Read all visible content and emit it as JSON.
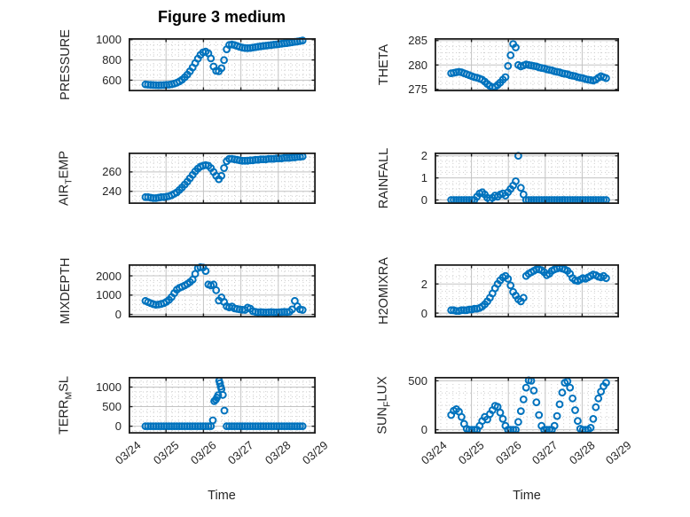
{
  "figure_title": "Figure 3 medium",
  "xlabel": "Time",
  "x_axis": {
    "tick_labels": [
      "03/24",
      "03/25",
      "03/26",
      "03/27",
      "03/28",
      "03/29"
    ],
    "range_days": [
      0,
      5
    ]
  },
  "style": {
    "marker_color": "#0072BD",
    "axis_color": "#1f1f1f",
    "text_color": "#262626",
    "major_grid_color": "#c3c3c3",
    "minor_grid_color": "#cdcdcd",
    "background": "#ffffff"
  },
  "x_days": [
    0.45,
    0.52,
    0.59,
    0.66,
    0.73,
    0.8,
    0.87,
    0.94,
    1.01,
    1.08,
    1.15,
    1.22,
    1.29,
    1.36,
    1.43,
    1.5,
    1.57,
    1.64,
    1.71,
    1.78,
    1.85,
    1.92,
    1.99,
    2.06,
    2.13,
    2.2,
    2.27,
    2.34,
    2.41,
    2.48,
    2.55,
    2.62,
    2.69,
    2.76,
    2.83,
    2.9,
    2.97,
    3.04,
    3.11,
    3.18,
    3.25,
    3.32,
    3.39,
    3.46,
    3.53,
    3.6,
    3.67,
    3.74,
    3.81,
    3.88,
    3.95,
    4.02,
    4.09,
    4.16,
    4.23,
    4.3,
    4.37,
    4.44,
    4.51,
    4.58,
    4.65
  ],
  "chart_data": [
    {
      "type": "scatter",
      "name": "PRESSURE",
      "ylabel_parts": [
        {
          "text": "PRESSURE"
        }
      ],
      "ylim": [
        490,
        1015
      ],
      "yticks": [
        600,
        800,
        1000
      ],
      "minor_y_step": 50,
      "y": [
        558,
        556,
        554,
        552,
        551,
        550,
        551,
        552,
        554,
        556,
        560,
        566,
        575,
        588,
        605,
        628,
        655,
        688,
        725,
        768,
        812,
        850,
        875,
        882,
        865,
        815,
        735,
        692,
        688,
        718,
        798,
        905,
        948,
        952,
        947,
        938,
        928,
        921,
        917,
        916,
        918,
        922,
        926,
        930,
        934,
        938,
        941,
        944,
        947,
        950,
        953,
        956,
        960,
        963,
        966,
        970,
        974,
        978,
        982,
        986,
        991
      ]
    },
    {
      "type": "scatter",
      "name": "THETA",
      "ylabel_parts": [
        {
          "text": "THETA"
        }
      ],
      "ylim": [
        274.6,
        285.5
      ],
      "yticks": [
        275,
        280,
        285
      ],
      "minor_y_step": 1.25,
      "y": [
        278.3,
        278.4,
        278.5,
        278.6,
        278.5,
        278.3,
        278.1,
        277.9,
        277.7,
        277.5,
        277.4,
        277.2,
        277.0,
        276.6,
        276.1,
        275.7,
        275.4,
        275.5,
        275.9,
        276.4,
        277.0,
        277.5,
        279.8,
        282.0,
        284.3,
        283.6,
        280.0,
        279.7,
        279.9,
        280.1,
        280.0,
        279.9,
        279.8,
        279.7,
        279.5,
        279.4,
        279.3,
        279.1,
        279.0,
        278.9,
        278.7,
        278.6,
        278.5,
        278.3,
        278.2,
        278.1,
        277.9,
        277.8,
        277.7,
        277.5,
        277.4,
        277.3,
        277.1,
        277.0,
        276.9,
        276.8,
        277.0,
        277.4,
        277.7,
        277.5,
        277.3
      ]
    },
    {
      "type": "scatter",
      "name": "AIR_TEMP",
      "ylabel_parts": [
        {
          "text": "AIR"
        },
        {
          "sub": "T"
        },
        {
          "text": "EMP"
        }
      ],
      "ylim": [
        227,
        280
      ],
      "yticks": [
        240,
        260
      ],
      "minor_y_step": 5,
      "y": [
        234,
        234,
        233.5,
        233,
        233,
        233.5,
        234,
        234,
        234.5,
        235,
        236,
        237.5,
        239,
        241.5,
        244,
        247,
        250,
        253.5,
        257,
        260.5,
        263.5,
        265.5,
        266.5,
        267,
        266.5,
        264,
        260,
        256,
        252.5,
        256,
        264,
        271,
        273.5,
        273.5,
        273,
        272.5,
        272,
        271.5,
        271.5,
        271.5,
        272,
        272,
        272.5,
        272.5,
        273,
        273,
        273,
        273.5,
        273.5,
        273.5,
        274,
        274,
        274,
        274.5,
        274.5,
        274.5,
        275,
        275,
        275.5,
        275.5,
        276
      ]
    },
    {
      "type": "scatter",
      "name": "RAINFALL",
      "ylabel_parts": [
        {
          "text": "RAINFALL"
        }
      ],
      "ylim": [
        -0.18,
        2.15
      ],
      "yticks": [
        0,
        1,
        2
      ],
      "minor_y_step": 0.25,
      "y": [
        0,
        0,
        0,
        0,
        0,
        0,
        0,
        0,
        0,
        0,
        0.15,
        0.3,
        0.35,
        0.25,
        0.1,
        0,
        0.1,
        0.2,
        0.15,
        0.25,
        0.3,
        0.2,
        0.35,
        0.5,
        0.65,
        0.85,
        2,
        0.55,
        0.25,
        0,
        0,
        0,
        0,
        0,
        0,
        0,
        0,
        0,
        0,
        0,
        0,
        0,
        0,
        0,
        0,
        0,
        0,
        0,
        0,
        0,
        0,
        0,
        0,
        0,
        0,
        0,
        0,
        0,
        0,
        0,
        0
      ]
    },
    {
      "type": "scatter",
      "name": "MIXDEPTH",
      "ylabel_parts": [
        {
          "text": "MIXDEPTH"
        }
      ],
      "ylim": [
        -160,
        2600
      ],
      "yticks": [
        0,
        1000,
        2000
      ],
      "minor_y_step": 250,
      "y": [
        700,
        640,
        580,
        530,
        500,
        510,
        540,
        580,
        650,
        750,
        900,
        1100,
        1280,
        1380,
        1430,
        1500,
        1580,
        1680,
        1800,
        2100,
        2400,
        2450,
        2430,
        2250,
        1550,
        1500,
        1550,
        1250,
        720,
        880,
        650,
        420,
        360,
        410,
        310,
        280,
        260,
        240,
        230,
        350,
        300,
        160,
        130,
        110,
        120,
        110,
        100,
        110,
        120,
        110,
        100,
        110,
        120,
        130,
        120,
        140,
        260,
        700,
        420,
        260,
        230
      ]
    },
    {
      "type": "scatter",
      "name": "H2OMIXRA",
      "ylabel_parts": [
        {
          "text": "H2OMIXRA"
        }
      ],
      "ylim": [
        -0.3,
        3.35
      ],
      "yticks": [
        0,
        2
      ],
      "minor_y_step": 0.5,
      "y": [
        0.2,
        0.2,
        0.15,
        0.15,
        0.2,
        0.2,
        0.2,
        0.25,
        0.25,
        0.3,
        0.3,
        0.35,
        0.45,
        0.6,
        0.8,
        1.05,
        1.35,
        1.7,
        2.0,
        2.25,
        2.45,
        2.55,
        2.35,
        1.9,
        1.45,
        1.2,
        0.95,
        0.8,
        1.05,
        2.55,
        2.7,
        2.8,
        2.9,
        3.0,
        3.0,
        2.95,
        2.8,
        2.6,
        2.7,
        2.9,
        3.0,
        3.05,
        3.1,
        3.05,
        3.0,
        2.9,
        2.7,
        2.4,
        2.25,
        2.2,
        2.3,
        2.4,
        2.35,
        2.45,
        2.55,
        2.65,
        2.6,
        2.5,
        2.45,
        2.55,
        2.4
      ]
    },
    {
      "type": "scatter",
      "name": "TERR_MSL",
      "ylabel_parts": [
        {
          "text": "TERR"
        },
        {
          "sub": "M"
        },
        {
          "text": "SL"
        }
      ],
      "ylim": [
        -190,
        1260
      ],
      "yticks": [
        0,
        500,
        1000
      ],
      "minor_y_step": 125,
      "x": [
        0.45,
        0.52,
        0.59,
        0.66,
        0.73,
        0.8,
        0.87,
        0.94,
        1.01,
        1.08,
        1.15,
        1.22,
        1.29,
        1.36,
        1.43,
        1.5,
        1.57,
        1.64,
        1.71,
        1.78,
        1.85,
        1.92,
        1.99,
        2.06,
        2.13,
        2.2,
        2.25,
        2.29,
        2.33,
        2.36,
        2.39,
        2.42,
        2.44,
        2.46,
        2.48,
        2.52,
        2.56,
        2.62,
        2.69,
        2.76,
        2.83,
        2.9,
        2.97,
        3.04,
        3.11,
        3.18,
        3.25,
        3.32,
        3.39,
        3.46,
        3.53,
        3.6,
        3.67,
        3.74,
        3.81,
        3.88,
        3.95,
        4.02,
        4.09,
        4.16,
        4.23,
        4.3,
        4.37,
        4.44,
        4.51,
        4.58,
        4.65
      ],
      "y": [
        0,
        0,
        0,
        0,
        0,
        0,
        0,
        0,
        0,
        0,
        0,
        0,
        0,
        0,
        0,
        0,
        0,
        0,
        0,
        0,
        0,
        0,
        0,
        0,
        0,
        0,
        150,
        640,
        680,
        730,
        790,
        1160,
        1100,
        1010,
        950,
        800,
        400,
        0,
        0,
        0,
        0,
        0,
        0,
        0,
        0,
        0,
        0,
        0,
        0,
        0,
        0,
        0,
        0,
        0,
        0,
        0,
        0,
        0,
        0,
        0,
        0,
        0,
        0,
        0,
        0,
        0,
        0
      ]
    },
    {
      "type": "scatter",
      "name": "SUN_FLUX",
      "ylabel_parts": [
        {
          "text": "SUN"
        },
        {
          "sub": "F"
        },
        {
          "text": "LUX"
        }
      ],
      "ylim": [
        -40,
        540
      ],
      "yticks": [
        0,
        500
      ],
      "minor_y_step": 125,
      "y": [
        150,
        195,
        210,
        185,
        130,
        60,
        10,
        0,
        0,
        0,
        0,
        40,
        90,
        130,
        105,
        160,
        200,
        245,
        235,
        175,
        110,
        40,
        0,
        0,
        0,
        0,
        80,
        190,
        310,
        430,
        505,
        500,
        400,
        280,
        150,
        40,
        0,
        0,
        0,
        0,
        40,
        140,
        260,
        380,
        480,
        495,
        430,
        320,
        200,
        90,
        10,
        0,
        0,
        0,
        20,
        110,
        230,
        320,
        390,
        445,
        480
      ]
    }
  ]
}
